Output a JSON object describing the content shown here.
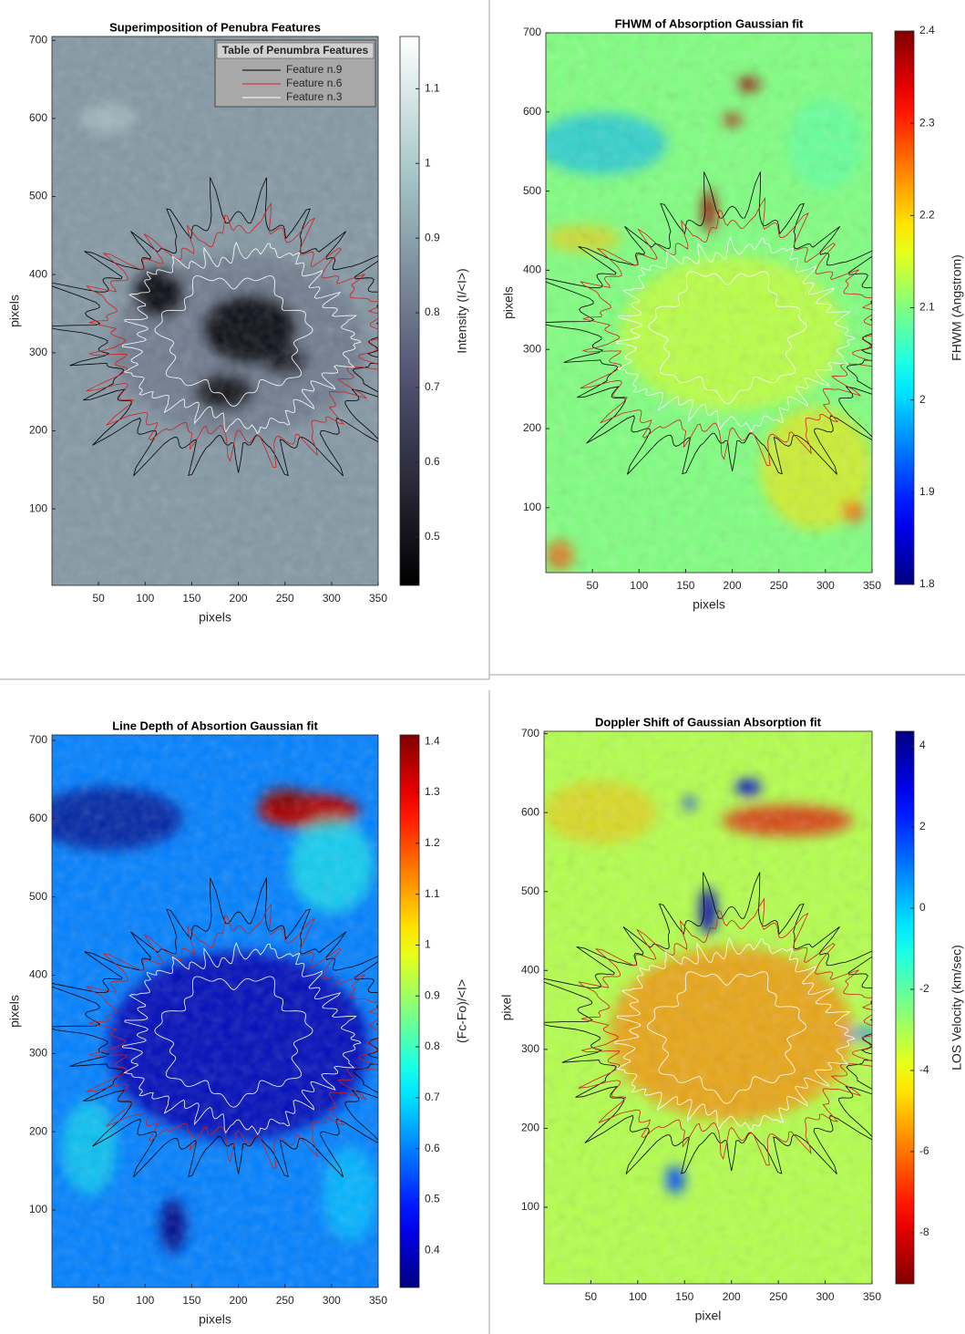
{
  "chart_data": [
    {
      "type": "image",
      "title": "Superimposition of Penubra Features",
      "x_label": "pixels",
      "y_label": "pixels",
      "xlim": [
        0,
        350
      ],
      "xticks": [
        50,
        100,
        150,
        200,
        250,
        300,
        350
      ],
      "ylim": [
        2,
        705
      ],
      "yticks": [
        100,
        200,
        300,
        400,
        500,
        600,
        700
      ],
      "colormap": "bone",
      "colorbar": {
        "label": "Intensity (I/<I>)",
        "lim": [
          0.435,
          1.17
        ],
        "ticks": [
          0.5,
          0.6,
          0.7,
          0.8,
          0.9,
          1,
          1.1
        ]
      },
      "legend": {
        "title": "Table of Penumbra Features",
        "items": [
          {
            "name": "Feature n.9",
            "color": "#000000"
          },
          {
            "name": "Feature n.6",
            "color": "#e02020"
          },
          {
            "name": "Feature n.3",
            "color": "#ffffff"
          }
        ]
      }
    },
    {
      "type": "image",
      "title": "FHWM of Absorption Gaussian fit",
      "x_label": "pixels",
      "y_label": "pixels",
      "xlim": [
        0,
        350
      ],
      "xticks": [
        50,
        100,
        150,
        200,
        250,
        300,
        350
      ],
      "ylim": [
        18,
        700
      ],
      "yticks": [
        100,
        200,
        300,
        400,
        500,
        600,
        700
      ],
      "colormap": "jet",
      "colorbar": {
        "label": "FHWM (Angstrom)",
        "lim": [
          1.8,
          2.4
        ],
        "ticks": [
          1.8,
          1.9,
          2,
          2.1,
          2.2,
          2.3,
          2.4
        ]
      }
    },
    {
      "type": "image",
      "title": "Line Depth of Absortion Gaussian fit",
      "x_label": "pixels",
      "y_label": "pixels",
      "xlim": [
        0,
        350
      ],
      "xticks": [
        50,
        100,
        150,
        200,
        250,
        300,
        350
      ],
      "ylim": [
        1,
        707
      ],
      "yticks": [
        100,
        200,
        300,
        400,
        500,
        600,
        700
      ],
      "colormap": "jet",
      "colorbar": {
        "label": "(Fc-Fo)/<I>",
        "lim": [
          0.327,
          1.413
        ],
        "ticks": [
          0.4,
          0.5,
          0.6,
          0.7,
          0.8,
          0.9,
          1,
          1.1,
          1.2,
          1.3,
          1.4
        ]
      }
    },
    {
      "type": "image",
      "title": "Doppler Shift of Gaussian Absorption fit",
      "x_label": "pixel",
      "y_label": "pixel",
      "xlim": [
        0,
        350
      ],
      "xticks": [
        50,
        100,
        150,
        200,
        250,
        300,
        350
      ],
      "ylim": [
        3,
        703
      ],
      "yticks": [
        100,
        200,
        300,
        400,
        500,
        600,
        700
      ],
      "colormap": "jet_reversed",
      "colorbar": {
        "label": "LOS Velocity (km/sec)",
        "lim": [
          -9.26,
          4.36
        ],
        "ticks": [
          -8,
          -6,
          -4,
          -2,
          0,
          2,
          4
        ]
      }
    }
  ]
}
